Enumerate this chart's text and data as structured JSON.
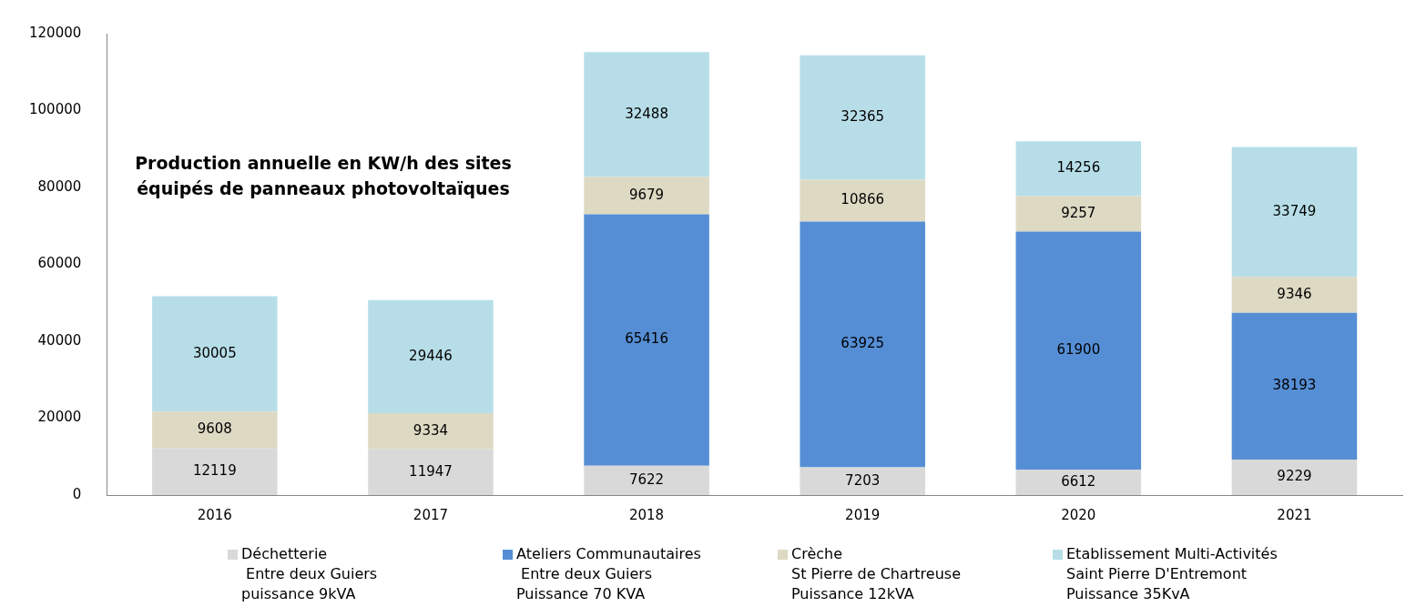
{
  "chart_data": {
    "type": "bar",
    "stacked": true,
    "title": "Production annuelle en KW/h des sites équipés de panneaux photovoltaïques",
    "categories": [
      "2016",
      "2017",
      "2018",
      "2019",
      "2020",
      "2021"
    ],
    "series": [
      {
        "name": "Déchetterie\n Entre deux Guiers\npuissance 9kVA",
        "color": "#d9d9d9",
        "values": [
          12119,
          11947,
          7622,
          7203,
          6612,
          9229
        ]
      },
      {
        "name": "Ateliers Communautaires\n Entre deux Guiers\nPuissance 70 KVA",
        "color": "#558ed5",
        "values": [
          null,
          null,
          65416,
          63925,
          61900,
          38193
        ]
      },
      {
        "name": "Crèche\nSt Pierre de Chartreuse\nPuissance 12kVA",
        "color": "#ddd9c3",
        "values": [
          9608,
          9334,
          9679,
          10866,
          9257,
          9346
        ]
      },
      {
        "name": "Etablissement Multi-Activités\nSaint Pierre D'Entremont\nPuissance 35KvA",
        "color": "#b7dee8",
        "values": [
          30005,
          29446,
          32488,
          32365,
          14256,
          33749
        ]
      }
    ],
    "ylim": [
      0,
      120000
    ],
    "yticks": [
      0,
      20000,
      40000,
      60000,
      80000,
      100000,
      120000
    ],
    "grid": false,
    "legend": "bottom",
    "data_labels": true
  }
}
